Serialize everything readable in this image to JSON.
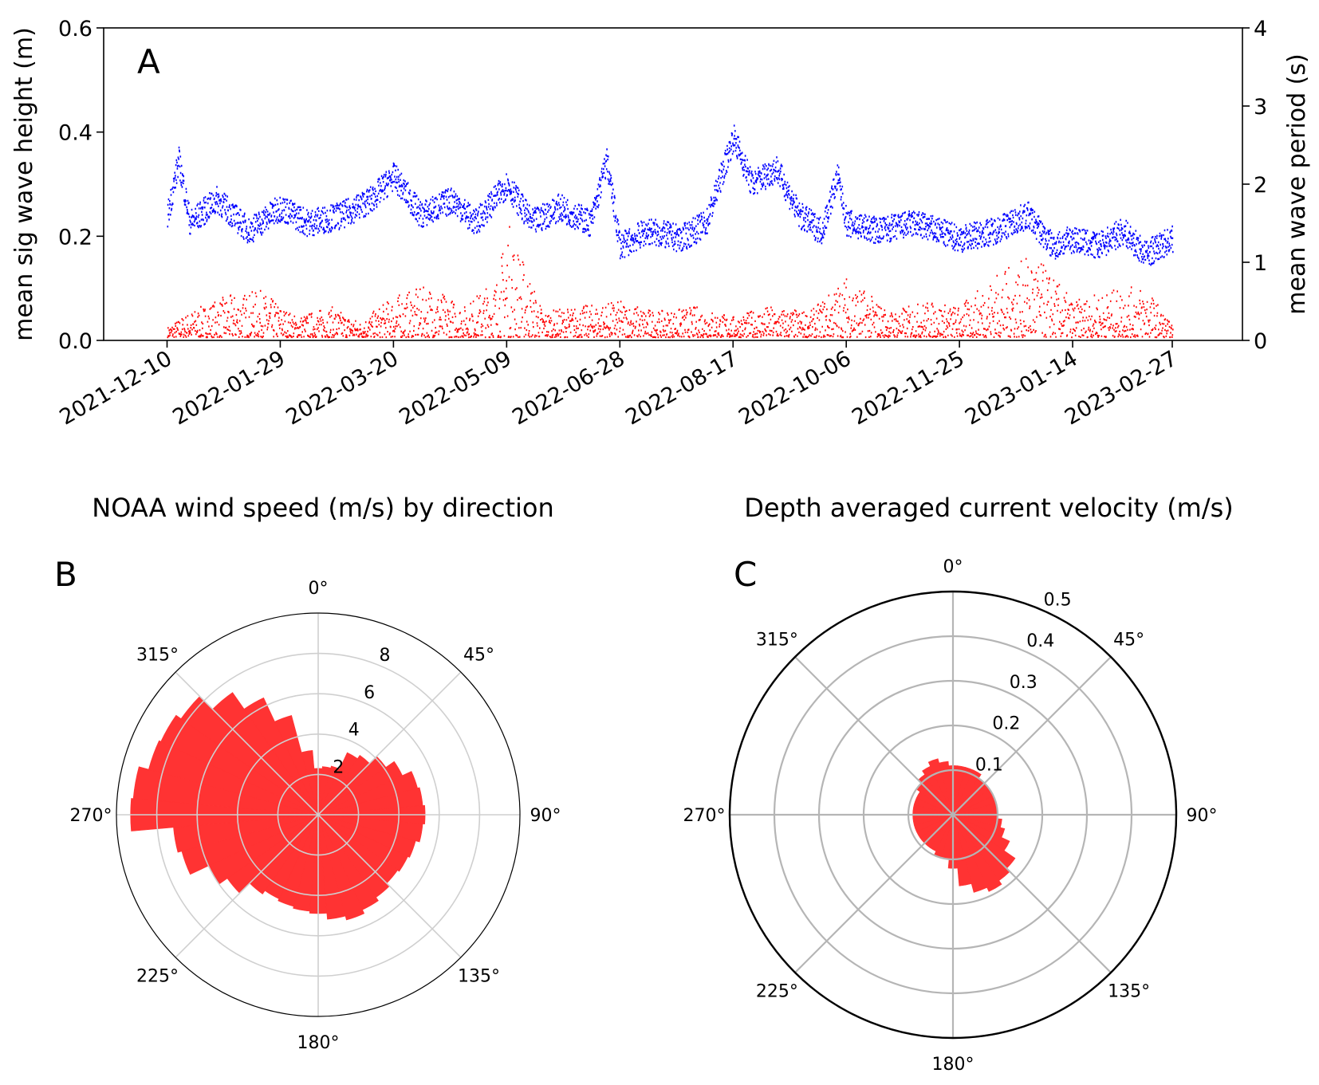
{
  "figure": {
    "panels": {
      "a": {
        "letter": "A"
      },
      "b": {
        "letter": "B",
        "title": "NOAA wind speed (m/s) by direction"
      },
      "c": {
        "letter": "C",
        "title": "Depth averaged current velocity (m/s)"
      }
    }
  },
  "chart_data": [
    {
      "id": "A",
      "type": "scatter",
      "xlabel": "",
      "ylabel": "mean sig wave height (m)",
      "ylabel_right": "mean wave period (s)",
      "x_tick_labels": [
        "2021-12-10",
        "2022-01-29",
        "2022-03-20",
        "2022-05-09",
        "2022-06-28",
        "2022-08-17",
        "2022-10-06",
        "2022-11-25",
        "2023-01-14",
        "2023-02-27"
      ],
      "xlim": [
        "2021-11-12",
        "2023-03-30"
      ],
      "ylim": [
        0,
        0.6
      ],
      "y_ticks": [
        "0.0",
        "0.2",
        "0.4",
        "0.6"
      ],
      "ylim_right": [
        0,
        4
      ],
      "y_ticks_right": [
        "0",
        "1",
        "2",
        "3",
        "4"
      ],
      "grid": false,
      "colors": {
        "height": "#ff0000",
        "period": "#0000ff"
      },
      "series": [
        {
          "axis": "left",
          "x": [
            "2021-12-10",
            "2021-12-20",
            "2022-01-05",
            "2022-01-20",
            "2022-02-05",
            "2022-02-20",
            "2022-03-05",
            "2022-03-20",
            "2022-04-05",
            "2022-04-20",
            "2022-05-05",
            "2022-05-09",
            "2022-05-25",
            "2022-06-10",
            "2022-06-28",
            "2022-07-15",
            "2022-08-01",
            "2022-08-17",
            "2022-09-01",
            "2022-09-20",
            "2022-10-06",
            "2022-10-25",
            "2022-11-10",
            "2022-11-25",
            "2022-12-10",
            "2022-12-28",
            "2023-01-14",
            "2023-01-30",
            "2023-02-15",
            "2023-02-27"
          ],
          "y": [
            0.02,
            0.05,
            0.08,
            0.09,
            0.04,
            0.06,
            0.03,
            0.08,
            0.1,
            0.06,
            0.12,
            0.23,
            0.05,
            0.06,
            0.07,
            0.05,
            0.06,
            0.04,
            0.06,
            0.05,
            0.12,
            0.05,
            0.07,
            0.06,
            0.12,
            0.16,
            0.07,
            0.09,
            0.1,
            0.02
          ]
        },
        {
          "axis": "right",
          "x": [
            "2021-12-10",
            "2021-12-15",
            "2021-12-20",
            "2022-01-01",
            "2022-01-15",
            "2022-01-29",
            "2022-02-10",
            "2022-02-25",
            "2022-03-10",
            "2022-03-20",
            "2022-04-01",
            "2022-04-15",
            "2022-04-25",
            "2022-05-09",
            "2022-05-20",
            "2022-06-01",
            "2022-06-15",
            "2022-06-22",
            "2022-06-28",
            "2022-07-10",
            "2022-07-25",
            "2022-08-05",
            "2022-08-17",
            "2022-08-25",
            "2022-09-05",
            "2022-09-15",
            "2022-09-25",
            "2022-10-02",
            "2022-10-06",
            "2022-10-20",
            "2022-11-05",
            "2022-11-25",
            "2022-12-10",
            "2022-12-25",
            "2023-01-05",
            "2023-01-14",
            "2023-01-25",
            "2023-02-05",
            "2023-02-15",
            "2023-02-27"
          ],
          "y": [
            1.6,
            2.3,
            1.5,
            1.8,
            1.4,
            1.7,
            1.5,
            1.6,
            1.8,
            2.1,
            1.6,
            1.8,
            1.5,
            2.0,
            1.5,
            1.7,
            1.5,
            2.3,
            1.2,
            1.4,
            1.3,
            1.5,
            2.6,
            2.0,
            2.2,
            1.6,
            1.4,
            2.1,
            1.5,
            1.4,
            1.5,
            1.3,
            1.4,
            1.6,
            1.2,
            1.3,
            1.2,
            1.4,
            1.1,
            1.3
          ]
        }
      ]
    },
    {
      "id": "B",
      "type": "polar_bar",
      "title": "NOAA wind speed (m/s) by direction",
      "r_ticks": [
        "2",
        "4",
        "6",
        "8"
      ],
      "rlim": [
        0,
        10
      ],
      "angle_labels": [
        "0°",
        "45°",
        "90°",
        "135°",
        "180°",
        "225°",
        "270°",
        "315°"
      ],
      "color": "#ff3333",
      "bar_width_deg": 10,
      "directions_deg": [
        0,
        10,
        20,
        30,
        40,
        50,
        60,
        70,
        80,
        90,
        100,
        110,
        120,
        130,
        140,
        150,
        160,
        170,
        180,
        190,
        200,
        210,
        220,
        230,
        240,
        250,
        260,
        270,
        280,
        290,
        300,
        310,
        320,
        330,
        340,
        350
      ],
      "values": [
        2.3,
        2.4,
        2.5,
        3.4,
        3.6,
        4.1,
        4.6,
        5.1,
        5.2,
        5.3,
        5.2,
        5.0,
        4.9,
        4.8,
        5.0,
        5.2,
        5.4,
        5.2,
        4.9,
        4.8,
        4.7,
        4.6,
        4.8,
        5.5,
        6.0,
        7.0,
        7.2,
        9.3,
        9.2,
        8.7,
        8.6,
        8.3,
        7.4,
        6.4,
        5.1,
        3.2
      ]
    },
    {
      "id": "C",
      "type": "polar_bar",
      "title": "Depth averaged current velocity (m/s)",
      "r_ticks": [
        "0.1",
        "0.2",
        "0.3",
        "0.4",
        "0.5"
      ],
      "rlim": [
        0,
        0.5
      ],
      "angle_labels": [
        "0°",
        "45°",
        "90°",
        "135°",
        "180°",
        "225°",
        "270°",
        "315°"
      ],
      "color": "#ff3333",
      "bar_width_deg": 10,
      "directions_deg": [
        0,
        10,
        20,
        30,
        40,
        50,
        60,
        70,
        80,
        90,
        100,
        110,
        120,
        130,
        140,
        150,
        160,
        170,
        180,
        190,
        200,
        210,
        220,
        230,
        240,
        250,
        260,
        270,
        280,
        290,
        300,
        310,
        320,
        330,
        340,
        350
      ],
      "values": [
        0.11,
        0.11,
        0.11,
        0.11,
        0.1,
        0.1,
        0.1,
        0.1,
        0.1,
        0.1,
        0.11,
        0.12,
        0.14,
        0.17,
        0.18,
        0.19,
        0.18,
        0.16,
        0.12,
        0.1,
        0.1,
        0.09,
        0.09,
        0.09,
        0.09,
        0.09,
        0.09,
        0.09,
        0.09,
        0.09,
        0.09,
        0.1,
        0.11,
        0.12,
        0.13,
        0.12
      ]
    }
  ]
}
